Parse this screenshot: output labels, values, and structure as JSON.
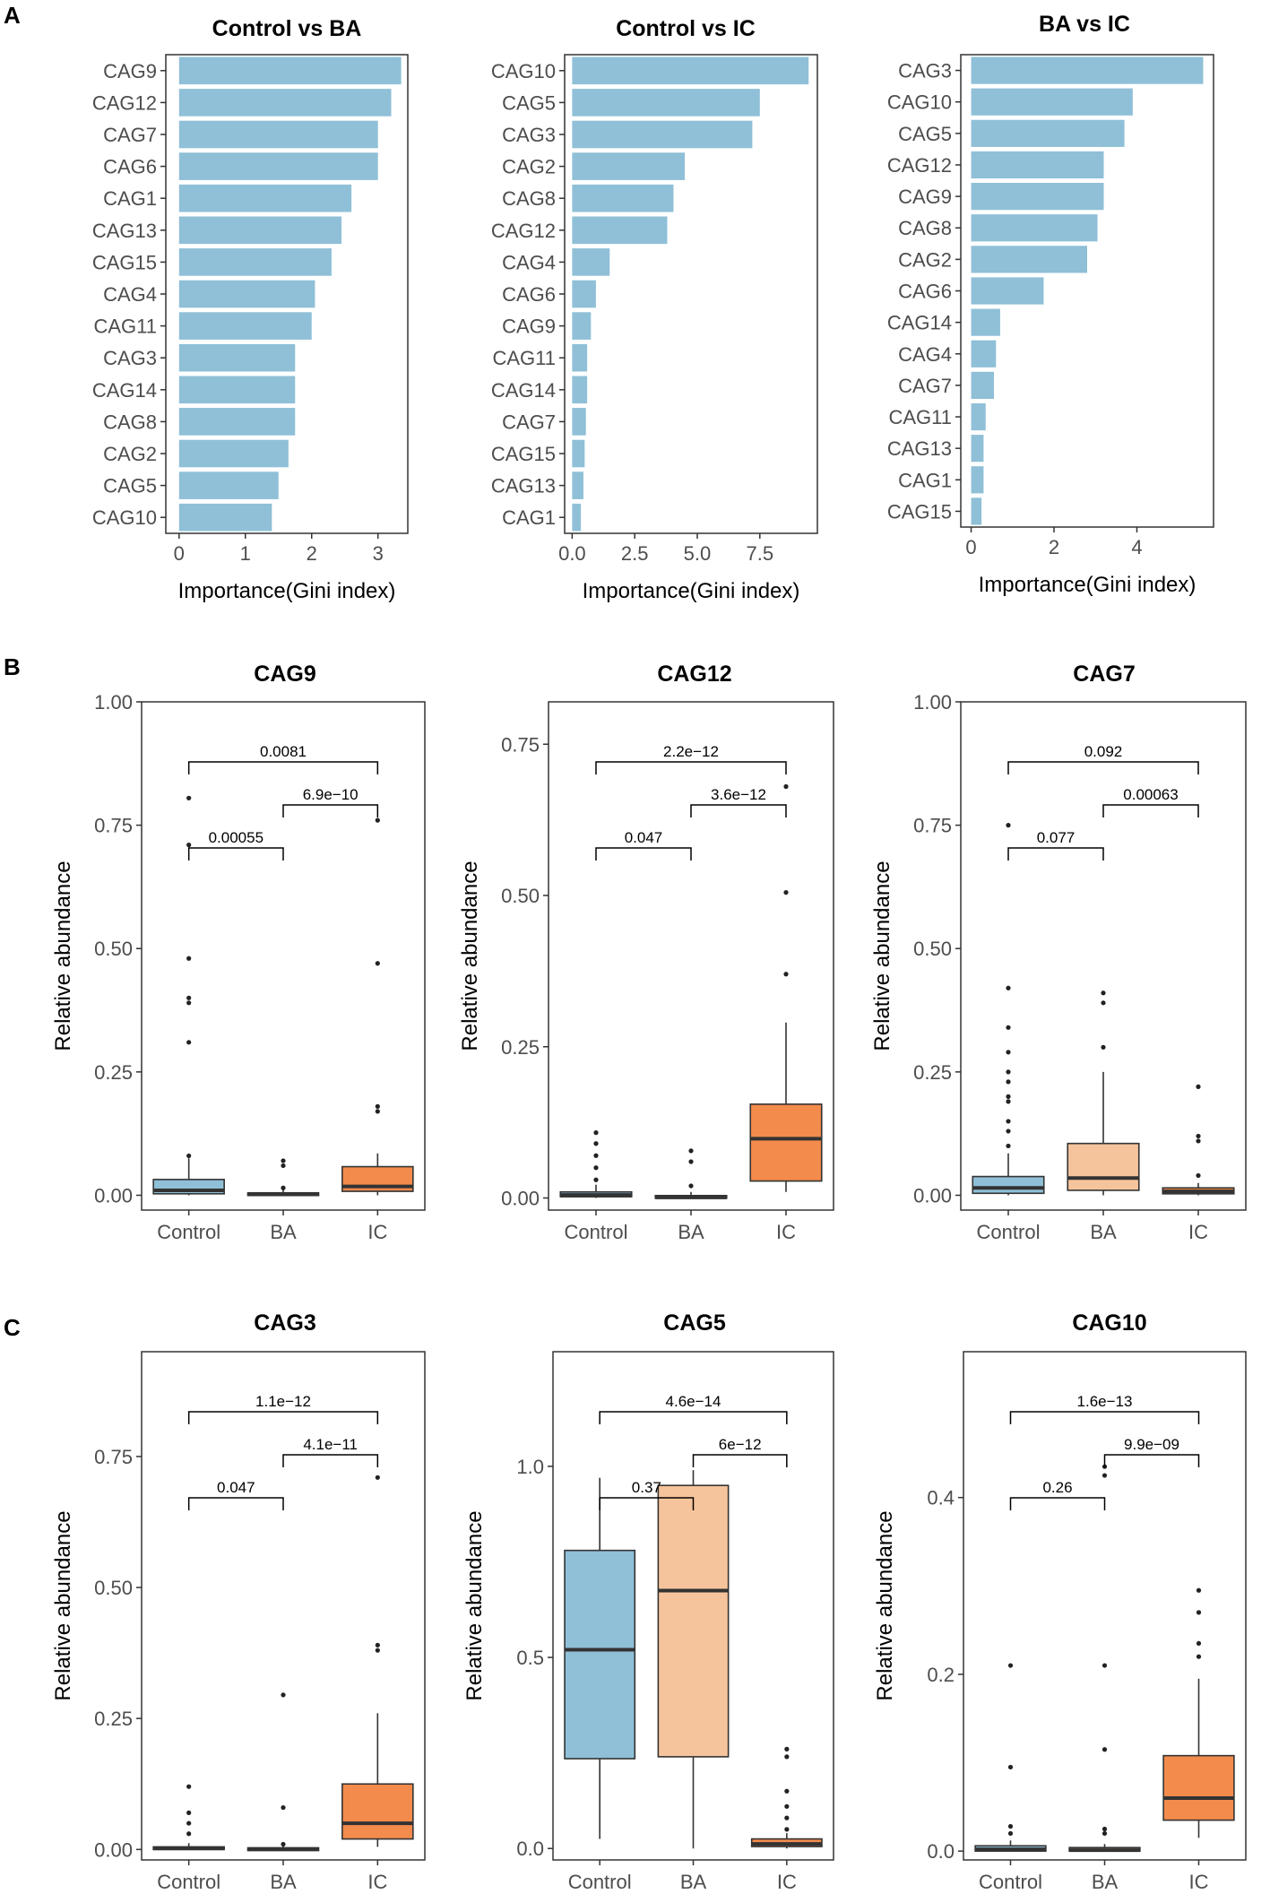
{
  "panels": {
    "a": "A",
    "b": "B",
    "c": "C"
  },
  "colors": {
    "bar": "#8fc0d7",
    "Control": "#8fc0d7",
    "BA": "#f6c49c",
    "IC": "#f38b4c"
  },
  "chart_data": [
    {
      "type": "bar",
      "orientation": "horizontal",
      "panel": "A",
      "title": "Control vs BA",
      "xlabel": "Importance(Gini index)",
      "ylabel": "",
      "categories": [
        "CAG9",
        "CAG12",
        "CAG7",
        "CAG6",
        "CAG1",
        "CAG13",
        "CAG15",
        "CAG4",
        "CAG11",
        "CAG3",
        "CAG14",
        "CAG8",
        "CAG2",
        "CAG5",
        "CAG10"
      ],
      "values": [
        3.35,
        3.2,
        3.0,
        3.0,
        2.6,
        2.45,
        2.3,
        2.05,
        2.0,
        1.75,
        1.75,
        1.75,
        1.65,
        1.5,
        1.4
      ],
      "xlim": [
        -0.2,
        3.45
      ],
      "xticks": [
        0,
        1,
        2,
        3
      ],
      "xtick_labels": [
        "0",
        "1",
        "2",
        "3"
      ]
    },
    {
      "type": "bar",
      "orientation": "horizontal",
      "panel": "A",
      "title": "Control vs IC",
      "xlabel": "Importance(Gini index)",
      "ylabel": "",
      "categories": [
        "CAG10",
        "CAG5",
        "CAG3",
        "CAG2",
        "CAG8",
        "CAG12",
        "CAG4",
        "CAG6",
        "CAG9",
        "CAG11",
        "CAG14",
        "CAG7",
        "CAG15",
        "CAG13",
        "CAG1"
      ],
      "values": [
        9.45,
        7.5,
        7.2,
        4.5,
        4.05,
        3.8,
        1.5,
        0.95,
        0.75,
        0.6,
        0.6,
        0.55,
        0.5,
        0.45,
        0.35
      ],
      "xlim": [
        -0.3,
        9.8
      ],
      "xticks": [
        0,
        2.5,
        5,
        7.5
      ],
      "xtick_labels": [
        "0.0",
        "2.5",
        "5.0",
        "7.5"
      ]
    },
    {
      "type": "bar",
      "orientation": "horizontal",
      "panel": "A",
      "title": "BA vs IC",
      "xlabel": "Importance(Gini index)",
      "ylabel": "",
      "categories": [
        "CAG3",
        "CAG10",
        "CAG5",
        "CAG12",
        "CAG9",
        "CAG8",
        "CAG2",
        "CAG6",
        "CAG14",
        "CAG4",
        "CAG7",
        "CAG11",
        "CAG13",
        "CAG1",
        "CAG15"
      ],
      "values": [
        5.6,
        3.9,
        3.7,
        3.2,
        3.2,
        3.05,
        2.8,
        1.75,
        0.7,
        0.6,
        0.55,
        0.35,
        0.3,
        0.3,
        0.25
      ],
      "xlim": [
        -0.25,
        5.85
      ],
      "xticks": [
        0,
        2,
        4
      ],
      "xtick_labels": [
        "0",
        "2",
        "4"
      ]
    },
    {
      "type": "box",
      "panel": "B",
      "title": "CAG9",
      "ylabel": "Relative abundance",
      "categories": [
        "Control",
        "BA",
        "IC"
      ],
      "ylim": [
        -0.03,
        1.0
      ],
      "yticks": [
        0,
        0.25,
        0.5,
        0.75,
        1.0
      ],
      "ytick_labels": [
        "0.00",
        "0.25",
        "0.50",
        "0.75",
        "1.00"
      ],
      "boxes": [
        {
          "group": "Control",
          "q1": 0.003,
          "median": 0.01,
          "q3": 0.032,
          "whisker_low": 0.0,
          "whisker_high": 0.075,
          "outliers": [
            0.805,
            0.71,
            0.48,
            0.4,
            0.39,
            0.31,
            0.08
          ]
        },
        {
          "group": "BA",
          "q1": 0.0,
          "median": 0.002,
          "q3": 0.005,
          "whisker_low": 0.0,
          "whisker_high": 0.012,
          "outliers": [
            0.07,
            0.06,
            0.015
          ]
        },
        {
          "group": "IC",
          "q1": 0.008,
          "median": 0.018,
          "q3": 0.058,
          "whisker_low": 0.0,
          "whisker_high": 0.085,
          "outliers": [
            0.76,
            0.47,
            0.18,
            0.17
          ]
        }
      ],
      "comparisons": [
        {
          "from": "Control",
          "to": "BA",
          "label": "0.00055"
        },
        {
          "from": "BA",
          "to": "IC",
          "label": "6.9e−10"
        },
        {
          "from": "Control",
          "to": "IC",
          "label": "0.0081"
        }
      ]
    },
    {
      "type": "box",
      "panel": "B",
      "title": "CAG12",
      "ylabel": "Relative abundance",
      "categories": [
        "Control",
        "BA",
        "IC"
      ],
      "ylim": [
        -0.02,
        0.82
      ],
      "yticks": [
        0,
        0.25,
        0.5,
        0.75
      ],
      "ytick_labels": [
        "0.00",
        "0.25",
        "0.50",
        "0.75"
      ],
      "boxes": [
        {
          "group": "Control",
          "q1": 0.002,
          "median": 0.005,
          "q3": 0.01,
          "whisker_low": 0.0,
          "whisker_high": 0.022,
          "outliers": [
            0.108,
            0.09,
            0.07,
            0.05,
            0.03
          ]
        },
        {
          "group": "BA",
          "q1": 0.0,
          "median": 0.001,
          "q3": 0.004,
          "whisker_low": 0.0,
          "whisker_high": 0.01,
          "outliers": [
            0.078,
            0.06,
            0.02
          ]
        },
        {
          "group": "IC",
          "q1": 0.028,
          "median": 0.098,
          "q3": 0.155,
          "whisker_low": 0.01,
          "whisker_high": 0.29,
          "outliers": [
            0.68,
            0.505,
            0.37
          ]
        }
      ],
      "comparisons": [
        {
          "from": "Control",
          "to": "BA",
          "label": "0.047"
        },
        {
          "from": "BA",
          "to": "IC",
          "label": "3.6e−12"
        },
        {
          "from": "Control",
          "to": "IC",
          "label": "2.2e−12"
        }
      ]
    },
    {
      "type": "box",
      "panel": "B",
      "title": "CAG7",
      "ylabel": "Relative abundance",
      "categories": [
        "Control",
        "BA",
        "IC"
      ],
      "ylim": [
        -0.03,
        1.0
      ],
      "yticks": [
        0,
        0.25,
        0.5,
        0.75,
        1.0
      ],
      "ytick_labels": [
        "0.00",
        "0.25",
        "0.50",
        "0.75",
        "1.00"
      ],
      "boxes": [
        {
          "group": "Control",
          "q1": 0.004,
          "median": 0.015,
          "q3": 0.038,
          "whisker_low": 0.0,
          "whisker_high": 0.085,
          "outliers": [
            0.75,
            0.42,
            0.34,
            0.29,
            0.25,
            0.23,
            0.2,
            0.19,
            0.15,
            0.13,
            0.1
          ]
        },
        {
          "group": "BA",
          "q1": 0.01,
          "median": 0.035,
          "q3": 0.105,
          "whisker_low": 0.0,
          "whisker_high": 0.25,
          "outliers": [
            0.41,
            0.39,
            0.3
          ]
        },
        {
          "group": "IC",
          "q1": 0.003,
          "median": 0.008,
          "q3": 0.015,
          "whisker_low": 0.0,
          "whisker_high": 0.025,
          "outliers": [
            0.22,
            0.12,
            0.11,
            0.04
          ]
        }
      ],
      "comparisons": [
        {
          "from": "Control",
          "to": "BA",
          "label": "0.077"
        },
        {
          "from": "BA",
          "to": "IC",
          "label": "0.00063"
        },
        {
          "from": "Control",
          "to": "IC",
          "label": "0.092"
        }
      ]
    },
    {
      "type": "box",
      "panel": "C",
      "title": "CAG3",
      "ylabel": "Relative abundance",
      "categories": [
        "Control",
        "BA",
        "IC"
      ],
      "ylim": [
        -0.02,
        0.95
      ],
      "yticks": [
        0,
        0.25,
        0.5,
        0.75
      ],
      "ytick_labels": [
        "0.00",
        "0.25",
        "0.50",
        "0.75"
      ],
      "boxes": [
        {
          "group": "Control",
          "q1": 0.0,
          "median": 0.002,
          "q3": 0.005,
          "whisker_low": 0.0,
          "whisker_high": 0.012,
          "outliers": [
            0.12,
            0.07,
            0.05,
            0.03
          ]
        },
        {
          "group": "BA",
          "q1": 0.0,
          "median": 0.001,
          "q3": 0.003,
          "whisker_low": 0.0,
          "whisker_high": 0.008,
          "outliers": [
            0.295,
            0.08,
            0.01
          ]
        },
        {
          "group": "IC",
          "q1": 0.02,
          "median": 0.05,
          "q3": 0.125,
          "whisker_low": 0.005,
          "whisker_high": 0.26,
          "outliers": [
            0.71,
            0.39,
            0.38
          ]
        }
      ],
      "comparisons": [
        {
          "from": "Control",
          "to": "BA",
          "label": "0.047"
        },
        {
          "from": "BA",
          "to": "IC",
          "label": "4.1e−11"
        },
        {
          "from": "Control",
          "to": "IC",
          "label": "1.1e−12"
        }
      ]
    },
    {
      "type": "box",
      "panel": "C",
      "title": "CAG5",
      "ylabel": "Relative abundance",
      "categories": [
        "Control",
        "BA",
        "IC"
      ],
      "ylim": [
        -0.03,
        1.3
      ],
      "yticks": [
        0,
        0.5,
        1.0
      ],
      "ytick_labels": [
        "0.0",
        "0.5",
        "1.0"
      ],
      "boxes": [
        {
          "group": "Control",
          "q1": 0.235,
          "median": 0.52,
          "q3": 0.78,
          "whisker_low": 0.025,
          "whisker_high": 0.97,
          "outliers": []
        },
        {
          "group": "BA",
          "q1": 0.24,
          "median": 0.675,
          "q3": 0.95,
          "whisker_low": 0.0,
          "whisker_high": 0.99,
          "outliers": []
        },
        {
          "group": "IC",
          "q1": 0.005,
          "median": 0.012,
          "q3": 0.025,
          "whisker_low": 0.0,
          "whisker_high": 0.04,
          "outliers": [
            0.26,
            0.24,
            0.15,
            0.11,
            0.08,
            0.05
          ]
        }
      ],
      "comparisons": [
        {
          "from": "Control",
          "to": "BA",
          "label": "0.37"
        },
        {
          "from": "BA",
          "to": "IC",
          "label": "6e−12"
        },
        {
          "from": "Control",
          "to": "IC",
          "label": "4.6e−14"
        }
      ]
    },
    {
      "type": "box",
      "panel": "C",
      "title": "CAG10",
      "ylabel": "Relative abundance",
      "categories": [
        "Control",
        "BA",
        "IC"
      ],
      "ylim": [
        -0.01,
        0.565
      ],
      "yticks": [
        0,
        0.2,
        0.4
      ],
      "ytick_labels": [
        "0.0",
        "0.2",
        "0.4"
      ],
      "boxes": [
        {
          "group": "Control",
          "q1": 0.0,
          "median": 0.002,
          "q3": 0.006,
          "whisker_low": 0.0,
          "whisker_high": 0.012,
          "outliers": [
            0.21,
            0.095,
            0.028,
            0.02
          ]
        },
        {
          "group": "BA",
          "q1": 0.0,
          "median": 0.001,
          "q3": 0.004,
          "whisker_low": 0.0,
          "whisker_high": 0.008,
          "outliers": [
            0.435,
            0.425,
            0.21,
            0.115,
            0.025,
            0.02
          ]
        },
        {
          "group": "IC",
          "q1": 0.035,
          "median": 0.06,
          "q3": 0.108,
          "whisker_low": 0.015,
          "whisker_high": 0.195,
          "outliers": [
            0.295,
            0.27,
            0.235,
            0.22
          ]
        }
      ],
      "comparisons": [
        {
          "from": "Control",
          "to": "BA",
          "label": "0.26"
        },
        {
          "from": "BA",
          "to": "IC",
          "label": "9.9e−09"
        },
        {
          "from": "Control",
          "to": "IC",
          "label": "1.6e−13"
        }
      ]
    }
  ]
}
